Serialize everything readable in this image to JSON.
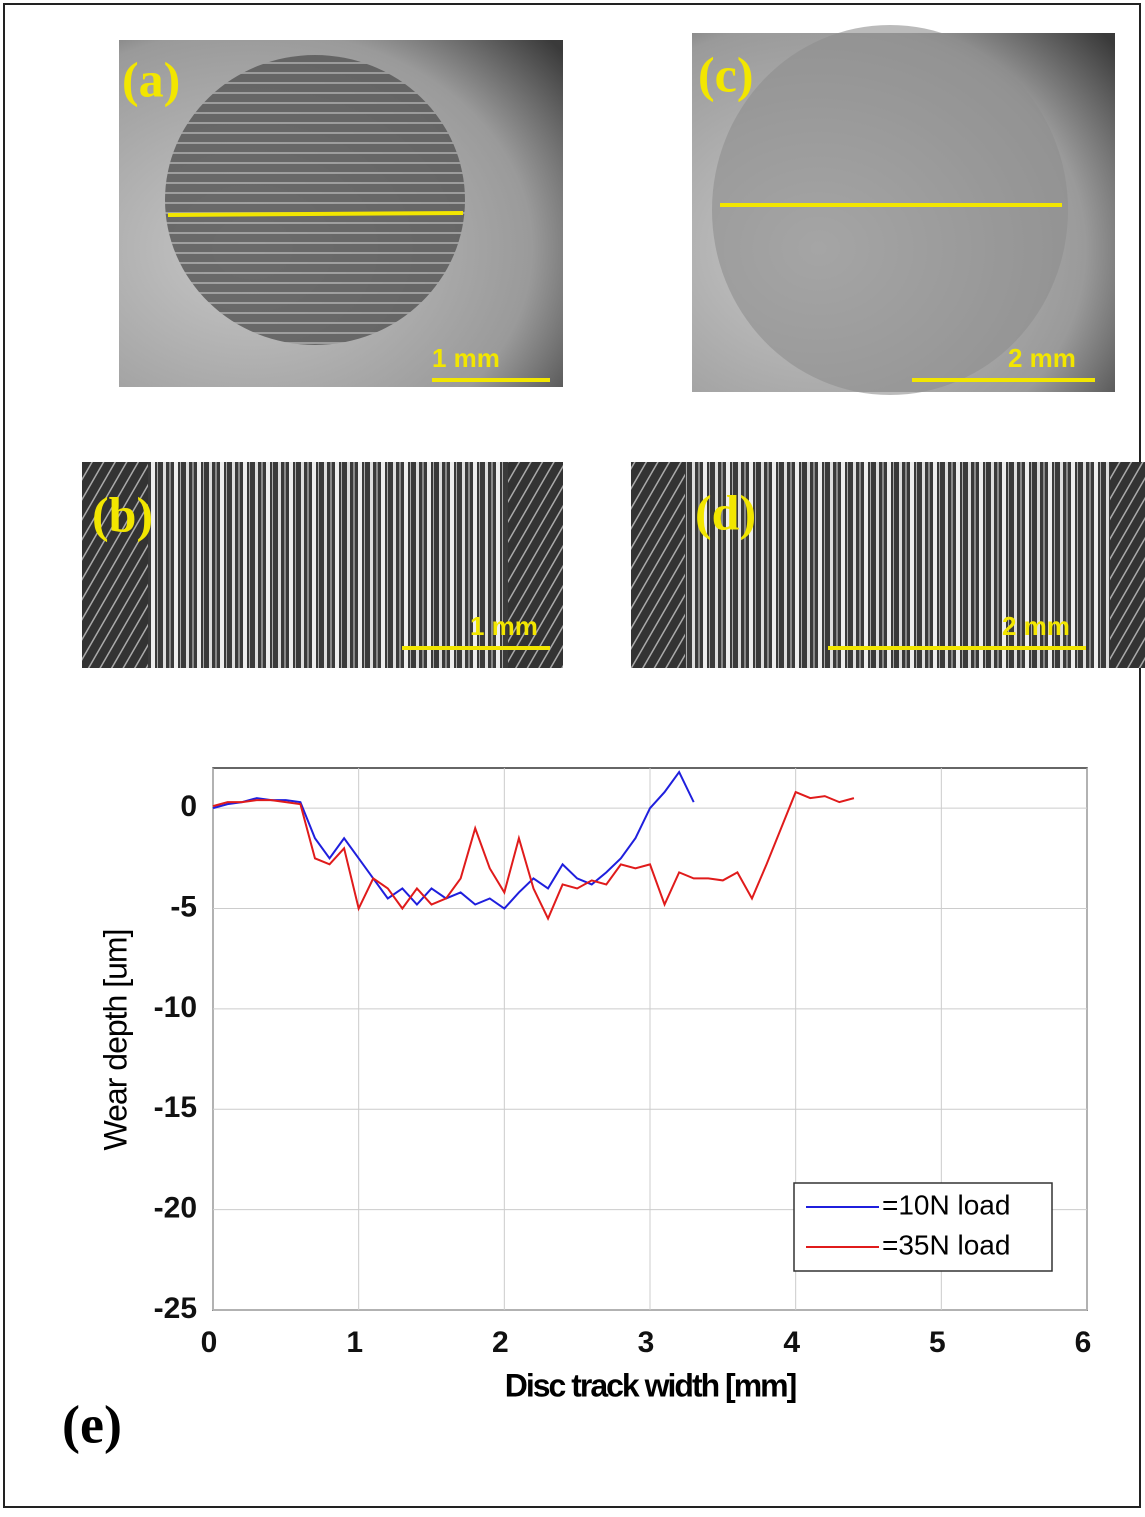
{
  "panels": [
    {
      "label": "(a)",
      "scale": "1 mm"
    },
    {
      "label": "(c)",
      "scale": "2 mm"
    },
    {
      "label": "(b)",
      "scale": "1 mm"
    },
    {
      "label": "(d)",
      "scale": "2 mm"
    }
  ],
  "chart_data": {
    "type": "line",
    "panel_label": "(e)",
    "xlabel": "Disc track width [mm]",
    "ylabel": "Wear depth [um]",
    "xlim": [
      0,
      6
    ],
    "ylim": [
      -25,
      2
    ],
    "xticks": [
      0,
      1,
      2,
      3,
      4,
      5,
      6
    ],
    "yticks": [
      -25,
      -20,
      -15,
      -10,
      -5,
      0
    ],
    "grid": true,
    "legend": "lower right",
    "series": [
      {
        "name": "=10N load",
        "color": "#1f1fdd",
        "x": [
          0,
          0.1,
          0.2,
          0.3,
          0.4,
          0.5,
          0.6,
          0.7,
          0.8,
          0.9,
          1.0,
          1.1,
          1.2,
          1.3,
          1.4,
          1.5,
          1.6,
          1.7,
          1.8,
          1.9,
          2.0,
          2.1,
          2.2,
          2.3,
          2.4,
          2.5,
          2.6,
          2.7,
          2.8,
          2.9,
          3.0,
          3.1,
          3.2,
          3.3
        ],
        "values": [
          0,
          0.2,
          0.3,
          0.5,
          0.4,
          0.4,
          0.3,
          -1.5,
          -2.5,
          -1.5,
          -2.5,
          -3.5,
          -4.5,
          -4,
          -4.8,
          -4,
          -4.5,
          -4.2,
          -4.8,
          -4.5,
          -5,
          -4.2,
          -3.5,
          -4,
          -2.8,
          -3.5,
          -3.8,
          -3.2,
          -2.5,
          -1.5,
          0,
          0.8,
          1.8,
          0.3
        ]
      },
      {
        "name": "=35N load",
        "color": "#e01b1b",
        "x": [
          0,
          0.1,
          0.2,
          0.3,
          0.4,
          0.5,
          0.6,
          0.7,
          0.8,
          0.9,
          1.0,
          1.1,
          1.2,
          1.3,
          1.4,
          1.5,
          1.6,
          1.7,
          1.8,
          1.9,
          2.0,
          2.1,
          2.2,
          2.3,
          2.4,
          2.5,
          2.6,
          2.7,
          2.8,
          2.9,
          3.0,
          3.1,
          3.2,
          3.3,
          3.4,
          3.5,
          3.6,
          3.7,
          3.8,
          3.9,
          4.0,
          4.1,
          4.2,
          4.3,
          4.4
        ],
        "values": [
          0.1,
          0.3,
          0.3,
          0.4,
          0.4,
          0.3,
          0.2,
          -2.5,
          -2.8,
          -2,
          -5,
          -3.5,
          -4,
          -5,
          -4,
          -4.8,
          -4.5,
          -3.5,
          -1,
          -3,
          -4.2,
          -1.5,
          -4,
          -5.5,
          -3.8,
          -4,
          -3.6,
          -3.8,
          -2.8,
          -3,
          -2.8,
          -4.8,
          -3.2,
          -3.5,
          -3.5,
          -3.6,
          -3.2,
          -4.5,
          -2.8,
          -1,
          0.8,
          0.5,
          0.6,
          0.3,
          0.5
        ]
      }
    ]
  }
}
